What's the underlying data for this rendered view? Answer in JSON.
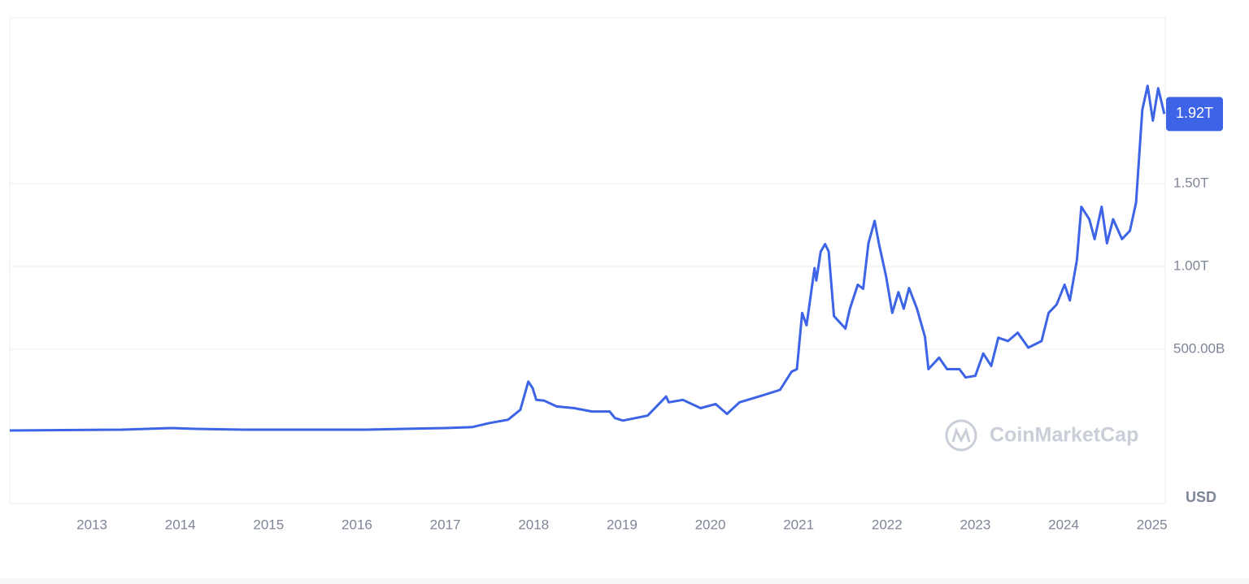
{
  "chart_data": {
    "type": "line",
    "watermark": "CoinMarketCap",
    "currency": "USD",
    "price_label": "1.92T",
    "xlim": [
      2012.07,
      2025.15
    ],
    "xticks": [
      2013,
      2014,
      2015,
      2016,
      2017,
      2018,
      2019,
      2020,
      2021,
      2022,
      2023,
      2024,
      2025
    ],
    "ylim": [
      -431,
      2500
    ],
    "yticks": [
      {
        "value": 500,
        "label": "500.00B"
      },
      {
        "value": 1000,
        "label": "1.00T"
      },
      {
        "value": 1500,
        "label": "1.50T"
      }
    ],
    "grid": true,
    "series": [
      {
        "color": "#3d63e6",
        "x": [
          2012.07,
          2013.34,
          2013.9,
          2014.17,
          2014.72,
          2016.1,
          2017.0,
          2017.3,
          2017.5,
          2017.71,
          2017.85,
          2017.94,
          2017.99,
          2018.03,
          2018.12,
          2018.26,
          2018.46,
          2018.66,
          2018.86,
          2018.92,
          2019.01,
          2019.29,
          2019.5,
          2019.53,
          2019.69,
          2019.89,
          2020.06,
          2020.19,
          2020.33,
          2020.58,
          2020.79,
          2020.92,
          2020.98,
          2021.04,
          2021.09,
          2021.18,
          2021.2,
          2021.25,
          2021.3,
          2021.34,
          2021.4,
          2021.53,
          2021.58,
          2021.67,
          2021.73,
          2021.79,
          2021.86,
          2021.91,
          2021.99,
          2022.06,
          2022.13,
          2022.19,
          2022.25,
          2022.34,
          2022.43,
          2022.47,
          2022.59,
          2022.68,
          2022.82,
          2022.89,
          2023.0,
          2023.09,
          2023.18,
          2023.26,
          2023.37,
          2023.48,
          2023.6,
          2023.75,
          2023.83,
          2023.92,
          2024.01,
          2024.07,
          2024.15,
          2024.2,
          2024.29,
          2024.35,
          2024.43,
          2024.49,
          2024.56,
          2024.66,
          2024.75,
          2024.82,
          2024.89,
          2024.95,
          2025.01,
          2025.07,
          2025.14
        ],
        "values": [
          10,
          15,
          25,
          20,
          15,
          15,
          25,
          30,
          55,
          75,
          135,
          305,
          265,
          195,
          190,
          155,
          145,
          125,
          125,
          85,
          70,
          100,
          215,
          180,
          195,
          145,
          170,
          110,
          180,
          220,
          255,
          365,
          380,
          720,
          645,
          990,
          915,
          1090,
          1135,
          1090,
          700,
          625,
          745,
          890,
          865,
          1140,
          1275,
          1135,
          940,
          720,
          845,
          745,
          870,
          745,
          575,
          380,
          450,
          380,
          380,
          330,
          340,
          475,
          400,
          570,
          550,
          600,
          510,
          550,
          720,
          770,
          890,
          795,
          1040,
          1360,
          1285,
          1165,
          1360,
          1140,
          1285,
          1165,
          1215,
          1385,
          1945,
          2090,
          1880,
          2075,
          1920
        ]
      }
    ]
  }
}
